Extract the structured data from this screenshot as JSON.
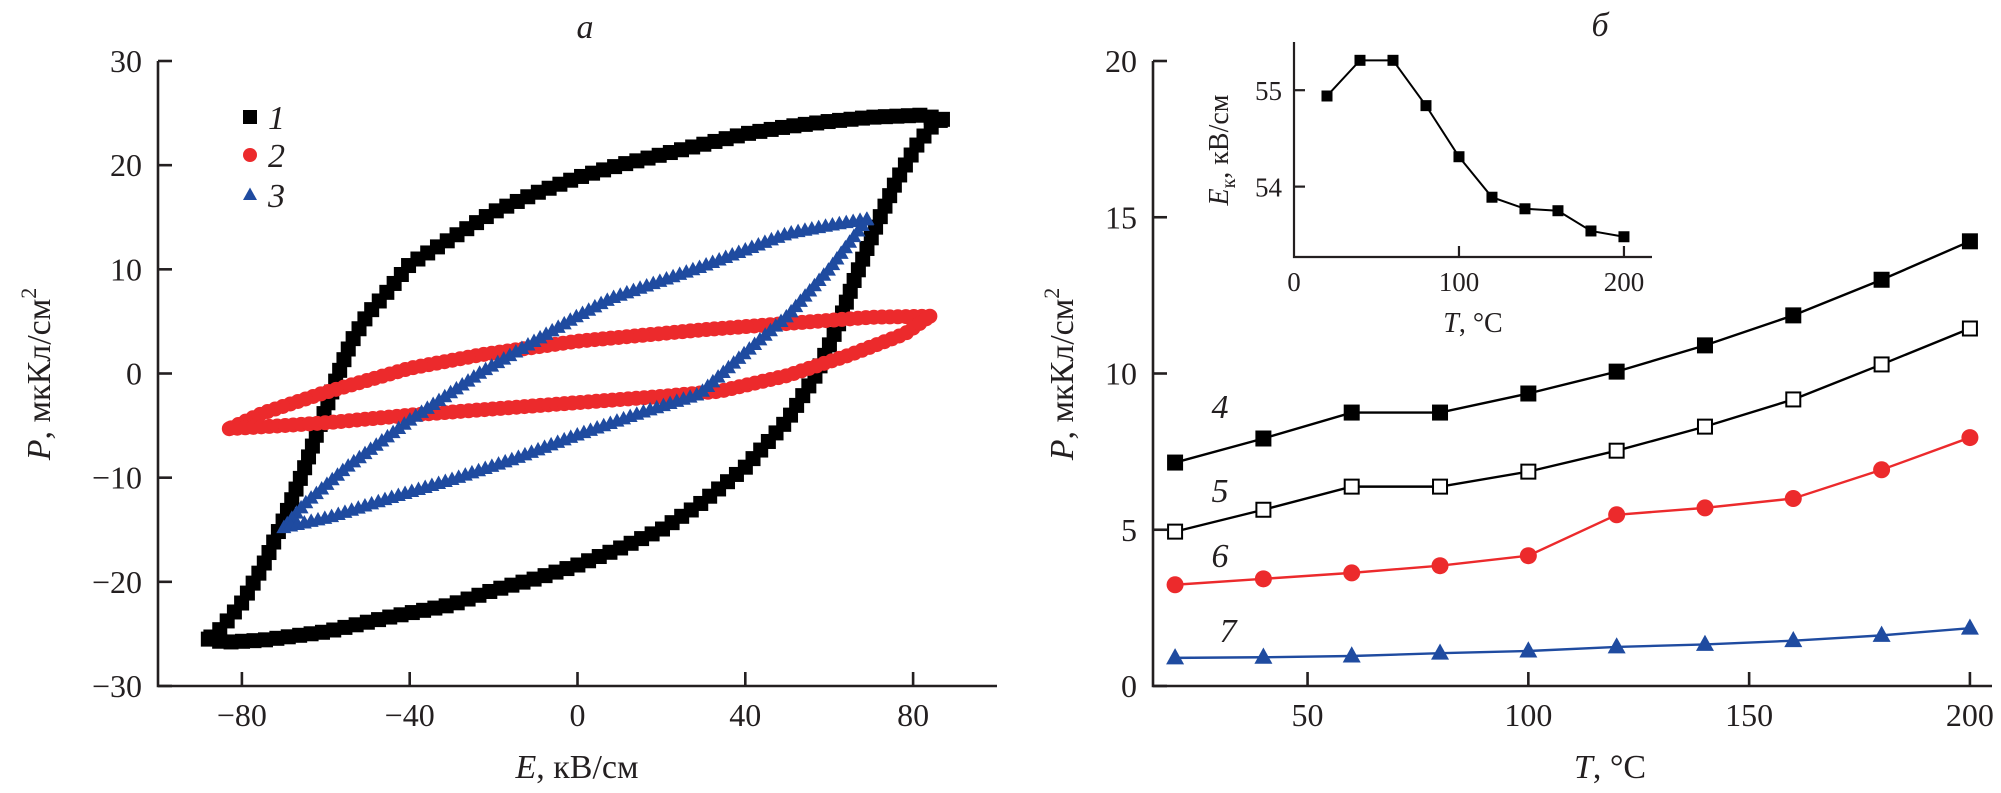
{
  "colors": {
    "black": "#000000",
    "red": "#ec2a2c",
    "blue": "#1f4ba0",
    "axis": "#231f20"
  },
  "chart_data": [
    {
      "panel": "а",
      "type": "scatter",
      "title": "а",
      "xlabel_var": "E",
      "xlabel_unit": ", кВ/см",
      "ylabel_var": "P",
      "ylabel_unit": ", мкКл/см",
      "ylabel_sup": "2",
      "xlim": [
        -100,
        100
      ],
      "ylim": [
        -30,
        30
      ],
      "xticks": [
        -80,
        -40,
        0,
        40,
        80
      ],
      "xtick_labels": [
        "−80",
        "−40",
        "0",
        "40",
        "80"
      ],
      "yticks": [
        -30,
        -20,
        -10,
        0,
        10,
        20,
        30
      ],
      "ytick_labels": [
        "−30",
        "−20",
        "−10",
        "0",
        "10",
        "20",
        "30"
      ],
      "grid": false,
      "legend_position": "top-left",
      "series": [
        {
          "name": "1",
          "marker": "square",
          "color": "#000000",
          "upper_branch": [
            [
              87,
              24.4
            ],
            [
              82,
              24.8
            ],
            [
              70,
              24.6
            ],
            [
              60,
              24.2
            ],
            [
              50,
              23.7
            ],
            [
              40,
              23.0
            ],
            [
              30,
              22.0
            ],
            [
              20,
              21.0
            ],
            [
              10,
              20.0
            ],
            [
              0,
              18.8
            ],
            [
              -10,
              17.3
            ],
            [
              -20,
              15.5
            ],
            [
              -30,
              13.0
            ],
            [
              -40,
              10.5
            ],
            [
              -45,
              8.0
            ],
            [
              -50,
              5.7
            ],
            [
              -54,
              3.0
            ],
            [
              -57,
              0
            ],
            [
              -61,
              -4.5
            ],
            [
              -65,
              -9
            ],
            [
              -70,
              -14
            ],
            [
              -75,
              -18.5
            ],
            [
              -80,
              -22
            ],
            [
              -85,
              -24.5
            ],
            [
              -88,
              -25.5
            ]
          ],
          "lower_branch": [
            [
              -88,
              -25.5
            ],
            [
              -84,
              -25.8
            ],
            [
              -75,
              -25.6
            ],
            [
              -60,
              -24.8
            ],
            [
              -45,
              -23.4
            ],
            [
              -30,
              -22.2
            ],
            [
              -20,
              -20.8
            ],
            [
              -10,
              -19.7
            ],
            [
              0,
              -18.4
            ],
            [
              10,
              -16.8
            ],
            [
              20,
              -15.0
            ],
            [
              29,
              -12.6
            ],
            [
              40,
              -9.0
            ],
            [
              50,
              -4.5
            ],
            [
              57,
              0
            ],
            [
              62,
              4.5
            ],
            [
              66,
              9
            ],
            [
              71,
              14
            ],
            [
              76,
              18.5
            ],
            [
              81,
              22
            ],
            [
              85,
              24
            ],
            [
              87,
              24.4
            ]
          ]
        },
        {
          "name": "2",
          "marker": "circle",
          "color": "#ec2a2c",
          "upper_branch": [
            [
              84,
              5.5
            ],
            [
              70,
              5.4
            ],
            [
              50,
              4.8
            ],
            [
              30,
              4.2
            ],
            [
              0,
              3.1
            ],
            [
              -23,
              1.8
            ],
            [
              -40,
              0.5
            ],
            [
              -60,
              -1.8
            ],
            [
              -75,
              -3.8
            ],
            [
              -83,
              -5.3
            ]
          ],
          "lower_branch": [
            [
              -83,
              -5.3
            ],
            [
              -70,
              -5.0
            ],
            [
              -59,
              -4.7
            ],
            [
              -40,
              -4.0
            ],
            [
              -20,
              -3.4
            ],
            [
              0,
              -2.8
            ],
            [
              20,
              -2.2
            ],
            [
              34,
              -1.7
            ],
            [
              50,
              -0.2
            ],
            [
              65,
              1.8
            ],
            [
              78,
              3.8
            ],
            [
              84,
              5.5
            ]
          ]
        },
        {
          "name": "3",
          "marker": "triangle",
          "color": "#1f4ba0",
          "upper_branch": [
            [
              69,
              14.8
            ],
            [
              60,
              14.2
            ],
            [
              50,
              13.4
            ],
            [
              30,
              10.3
            ],
            [
              8,
              7.2
            ],
            [
              0,
              5.5
            ],
            [
              -23,
              0.1
            ],
            [
              -40,
              -4.5
            ],
            [
              -55,
              -9
            ],
            [
              -65,
              -12.5
            ],
            [
              -70,
              -14.8
            ]
          ],
          "lower_branch": [
            [
              -70,
              -14.8
            ],
            [
              -59,
              -13.8
            ],
            [
              -45,
              -12.0
            ],
            [
              -30,
              -10.2
            ],
            [
              -15,
              -8.2
            ],
            [
              0,
              -5.9
            ],
            [
              15,
              -3.8
            ],
            [
              29,
              -2.0
            ],
            [
              40,
              2.0
            ],
            [
              50,
              5.5
            ],
            [
              60,
              10.0
            ],
            [
              69,
              14.8
            ]
          ]
        }
      ]
    },
    {
      "panel": "б",
      "type": "line",
      "title": "б",
      "xlabel_var": "T",
      "xlabel_unit": ", °C",
      "ylabel_var": "P",
      "ylabel_unit": ", мкКл/см",
      "ylabel_sup": "2",
      "xlim": [
        15,
        205
      ],
      "ylim": [
        0,
        20
      ],
      "xticks": [
        50,
        100,
        150,
        200
      ],
      "xtick_labels": [
        "50",
        "100",
        "150",
        "200"
      ],
      "yticks": [
        0,
        5,
        10,
        15,
        20
      ],
      "ytick_labels": [
        "0",
        "5",
        "10",
        "15",
        "20"
      ],
      "grid": false,
      "x": [
        20,
        40,
        60,
        80,
        100,
        120,
        140,
        160,
        180,
        200
      ],
      "series": [
        {
          "name": "4",
          "marker": "square-filled",
          "color": "#000000",
          "values": [
            7.15,
            7.92,
            8.75,
            8.75,
            9.36,
            10.06,
            10.9,
            11.86,
            13.0,
            14.23
          ]
        },
        {
          "name": "5",
          "marker": "square-open",
          "color": "#000000",
          "values": [
            4.94,
            5.64,
            6.38,
            6.38,
            6.86,
            7.53,
            8.3,
            9.17,
            10.29,
            11.44
          ]
        },
        {
          "name": "6",
          "marker": "circle",
          "color": "#ec2a2c",
          "values": [
            3.24,
            3.43,
            3.62,
            3.85,
            4.17,
            5.48,
            5.7,
            6.0,
            6.92,
            7.95
          ]
        },
        {
          "name": "7",
          "marker": "triangle",
          "color": "#1f4ba0",
          "values": [
            0.9,
            0.92,
            0.96,
            1.05,
            1.12,
            1.25,
            1.33,
            1.45,
            1.62,
            1.85
          ]
        }
      ],
      "inset": {
        "type": "line",
        "xlabel_var": "T",
        "xlabel_unit": ", °C",
        "ylabel_var": "E",
        "ylabel_sub": "к",
        "ylabel_unit": ", кВ/см",
        "xlim": [
          0,
          217
        ],
        "ylim": [
          53.27,
          55.5
        ],
        "xticks": [
          0,
          100,
          200
        ],
        "xtick_labels": [
          "0",
          "100",
          "200"
        ],
        "yticks": [
          54,
          55
        ],
        "ytick_labels": [
          "54",
          "55"
        ],
        "x": [
          20,
          40,
          60,
          80,
          100,
          120,
          140,
          160,
          180,
          200
        ],
        "values": [
          54.94,
          55.31,
          55.31,
          54.84,
          54.31,
          53.89,
          53.77,
          53.75,
          53.54,
          53.48
        ],
        "marker": "square-filled",
        "color": "#000000"
      }
    }
  ]
}
